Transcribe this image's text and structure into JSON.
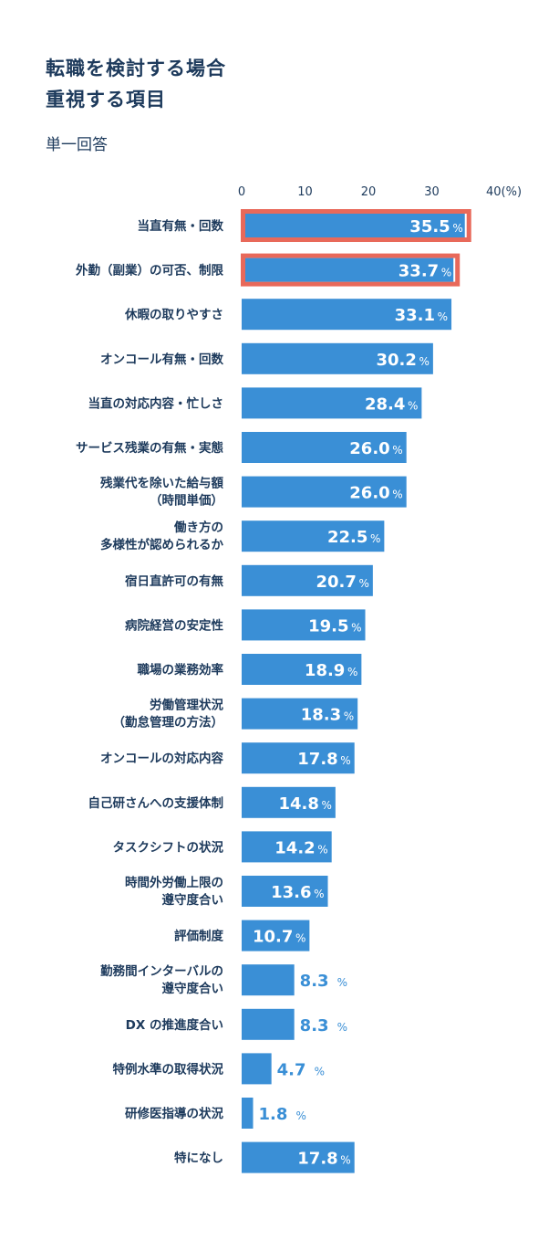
{
  "title": [
    "転職を検討する場合",
    "重視する項目"
  ],
  "subtitle": "単一回答",
  "chart_data": {
    "type": "bar",
    "orientation": "horizontal",
    "xlim": [
      0,
      40
    ],
    "ticks": [
      "0",
      "10",
      "20",
      "30",
      "40(%)"
    ],
    "unit": "%",
    "bar_color": "#3a8fd6",
    "highlight_color": "#e8695a",
    "label_color_outside": "#3a8fd6",
    "categories": [
      [
        "当直有無・回数"
      ],
      [
        "外勤（副業）の可否、制限"
      ],
      [
        "休暇の取りやすさ"
      ],
      [
        "オンコール有無・回数"
      ],
      [
        "当直の対応内容・忙しさ"
      ],
      [
        "サービス残業の有無・実態"
      ],
      [
        "残業代を除いた給与額",
        "（時間単価）"
      ],
      [
        "働き方の",
        "多様性が認められるか"
      ],
      [
        "宿日直許可の有無"
      ],
      [
        "病院経営の安定性"
      ],
      [
        "職場の業務効率"
      ],
      [
        "労働管理状況",
        "（勤怠管理の方法）"
      ],
      [
        "オンコールの対応内容"
      ],
      [
        "自己研さんへの支援体制"
      ],
      [
        "タスクシフトの状況"
      ],
      [
        "時間外労働上限の",
        "遵守度合い"
      ],
      [
        "評価制度"
      ],
      [
        "勤務間インターバルの",
        "遵守度合い"
      ],
      [
        "DX の推進度合い"
      ],
      [
        "特例水準の取得状況"
      ],
      [
        "研修医指導の状況"
      ],
      [
        "特になし"
      ]
    ],
    "values": [
      35.5,
      33.7,
      33.1,
      30.2,
      28.4,
      26.0,
      26.0,
      22.5,
      20.7,
      19.5,
      18.9,
      18.3,
      17.8,
      14.8,
      14.2,
      13.6,
      10.7,
      8.3,
      8.3,
      4.7,
      1.8,
      17.8
    ],
    "value_labels": [
      "35.5",
      "33.7",
      "33.1",
      "30.2",
      "28.4",
      "26.0",
      "26.0",
      "22.5",
      "20.7",
      "19.5",
      "18.9",
      "18.3",
      "17.8",
      "14.8",
      "14.2",
      "13.6",
      "10.7",
      "8.3",
      "8.3",
      "4.7",
      "1.8",
      "17.8"
    ],
    "highlighted": [
      0,
      1
    ]
  }
}
